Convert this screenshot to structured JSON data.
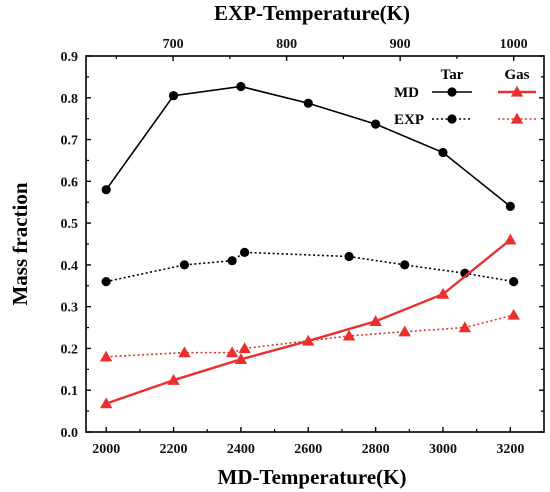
{
  "chart_data": {
    "type": "line",
    "title": "",
    "xlabel": "MD-Temperature(K)",
    "ylabel": "Mass fraction",
    "x2label": "EXP-Temperature(K)",
    "xlim": [
      1940,
      3300
    ],
    "ylim": [
      0,
      0.9
    ],
    "x2lim": [
      623.3,
      1026.7
    ],
    "xticks": [
      "2000",
      "2200",
      "2400",
      "2600",
      "2800",
      "3000",
      "3200"
    ],
    "yticks": [
      "0.0",
      "0.1",
      "0.2",
      "0.3",
      "0.4",
      "0.5",
      "0.6",
      "0.7",
      "0.8",
      "0.9"
    ],
    "x2ticks": [
      "700",
      "800",
      "900",
      "1000"
    ],
    "x2tick_values": [
      700,
      800,
      900,
      1000
    ],
    "grid": false,
    "legend": {
      "position": "top-right",
      "column_headers": [
        "Tar",
        "Gas"
      ],
      "row_labels": [
        "MD",
        "EXP"
      ]
    },
    "series": [
      {
        "key": "md-tar",
        "color": "#000000",
        "marker": "circle",
        "line": "solid",
        "axis": "bottom",
        "x": [
          2000,
          2200,
          2400,
          2600,
          2800,
          3000,
          3200
        ],
        "y": [
          0.58,
          0.805,
          0.827,
          0.787,
          0.737,
          0.669,
          0.54
        ]
      },
      {
        "key": "exp-tar",
        "color": "#000000",
        "marker": "circle",
        "line": "dotted",
        "axis": "top",
        "x": [
          641,
          710,
          752,
          763,
          855,
          904,
          957,
          1000
        ],
        "y": [
          0.36,
          0.4,
          0.41,
          0.43,
          0.42,
          0.4,
          0.38,
          0.36
        ]
      },
      {
        "key": "md-gas",
        "color": "#e8312e",
        "marker": "triangle",
        "line": "solid",
        "axis": "bottom",
        "x": [
          2000,
          2200,
          2400,
          2600,
          2800,
          3000,
          3200
        ],
        "y": [
          0.068,
          0.124,
          0.174,
          0.218,
          0.265,
          0.33,
          0.46
        ]
      },
      {
        "key": "exp-gas",
        "color": "#e8312e",
        "marker": "triangle",
        "line": "dotted",
        "axis": "top",
        "x": [
          641,
          710,
          752,
          763,
          855,
          904,
          957,
          1000
        ],
        "y": [
          0.18,
          0.19,
          0.19,
          0.2,
          0.23,
          0.24,
          0.25,
          0.28
        ]
      }
    ]
  }
}
